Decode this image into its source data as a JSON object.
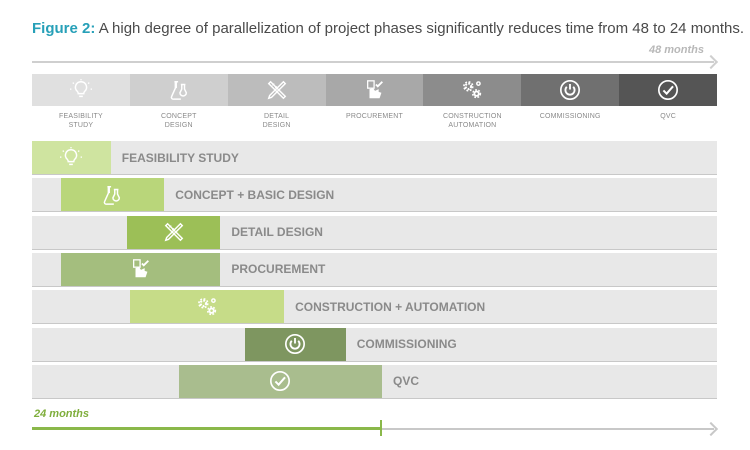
{
  "caption": {
    "prefix": "Figure 2:",
    "text": "A high degree of parallelization of project phases significantly reduces time from 48 to 24 months."
  },
  "timeline": {
    "top_label": "48 months",
    "bottom_label": "24 months"
  },
  "phases": [
    {
      "label": "FEASIBILITY\nSTUDY",
      "icon": "lightbulb-icon",
      "color": "#e0e0e0"
    },
    {
      "label": "CONCEPT\nDESIGN",
      "icon": "flask-icon",
      "color": "#cfcfcf"
    },
    {
      "label": "DETAIL\nDESIGN",
      "icon": "ruler-pencil-icon",
      "color": "#bcbcbc"
    },
    {
      "label": "PROCUREMENT",
      "icon": "hand-check-icon",
      "color": "#a8a8a8"
    },
    {
      "label": "CONSTRUCTION\nAUTOMATION",
      "icon": "gears-icon",
      "color": "#8c8c8c"
    },
    {
      "label": "COMMISSIONING",
      "icon": "power-icon",
      "color": "#707070"
    },
    {
      "label": "QVC",
      "icon": "check-circle-icon",
      "color": "#555555"
    }
  ],
  "gantt": [
    {
      "label": "FEASIBILITY STUDY",
      "start": 0,
      "end": 0.115,
      "color": "#cfe4a0"
    },
    {
      "label": "CONCEPT + BASIC DESIGN",
      "start": 0.042,
      "end": 0.193,
      "color": "#b9d67a"
    },
    {
      "label": "DETAIL DESIGN",
      "start": 0.139,
      "end": 0.275,
      "color": "#9cbf57"
    },
    {
      "label": "PROCUREMENT",
      "start": 0.042,
      "end": 0.275,
      "color": "#a4be7e"
    },
    {
      "label": "CONSTRUCTION + AUTOMATION",
      "start": 0.143,
      "end": 0.368,
      "color": "#c6dc88"
    },
    {
      "label": "COMMISSIONING",
      "start": 0.311,
      "end": 0.458,
      "color": "#7e9660"
    },
    {
      "label": "QVC",
      "start": 0.214,
      "end": 0.511,
      "color": "#a9bd8e"
    }
  ]
}
